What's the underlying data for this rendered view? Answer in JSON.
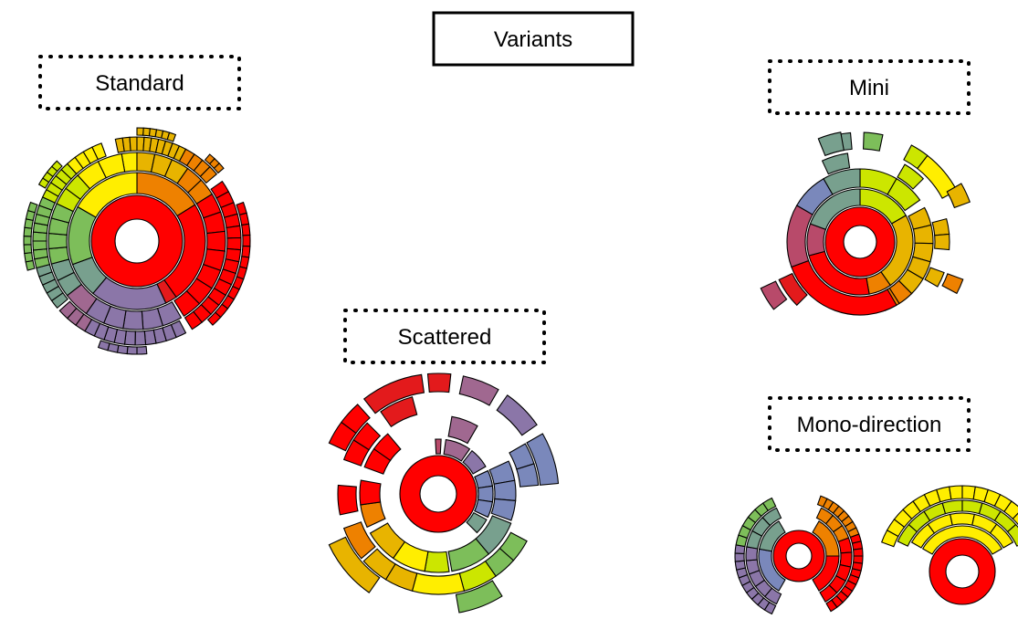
{
  "title": "Variants",
  "panels": [
    {
      "id": "standard",
      "label": "Standard"
    },
    {
      "id": "scattered",
      "label": "Scattered"
    },
    {
      "id": "mini",
      "label": "Mini"
    },
    {
      "id": "mono",
      "label": "Mono-direction"
    }
  ],
  "colors": {
    "red": "#ff0000",
    "crimson": "#e31a1c",
    "orange": "#ee8100",
    "amber": "#e8b400",
    "yellow": "#ffee00",
    "lime": "#cce600",
    "green": "#7dbe5a",
    "teal": "#78a08e",
    "blue": "#7a88bb",
    "purple": "#8b76a8",
    "mauve": "#a06890",
    "rose": "#b84a6a"
  }
}
